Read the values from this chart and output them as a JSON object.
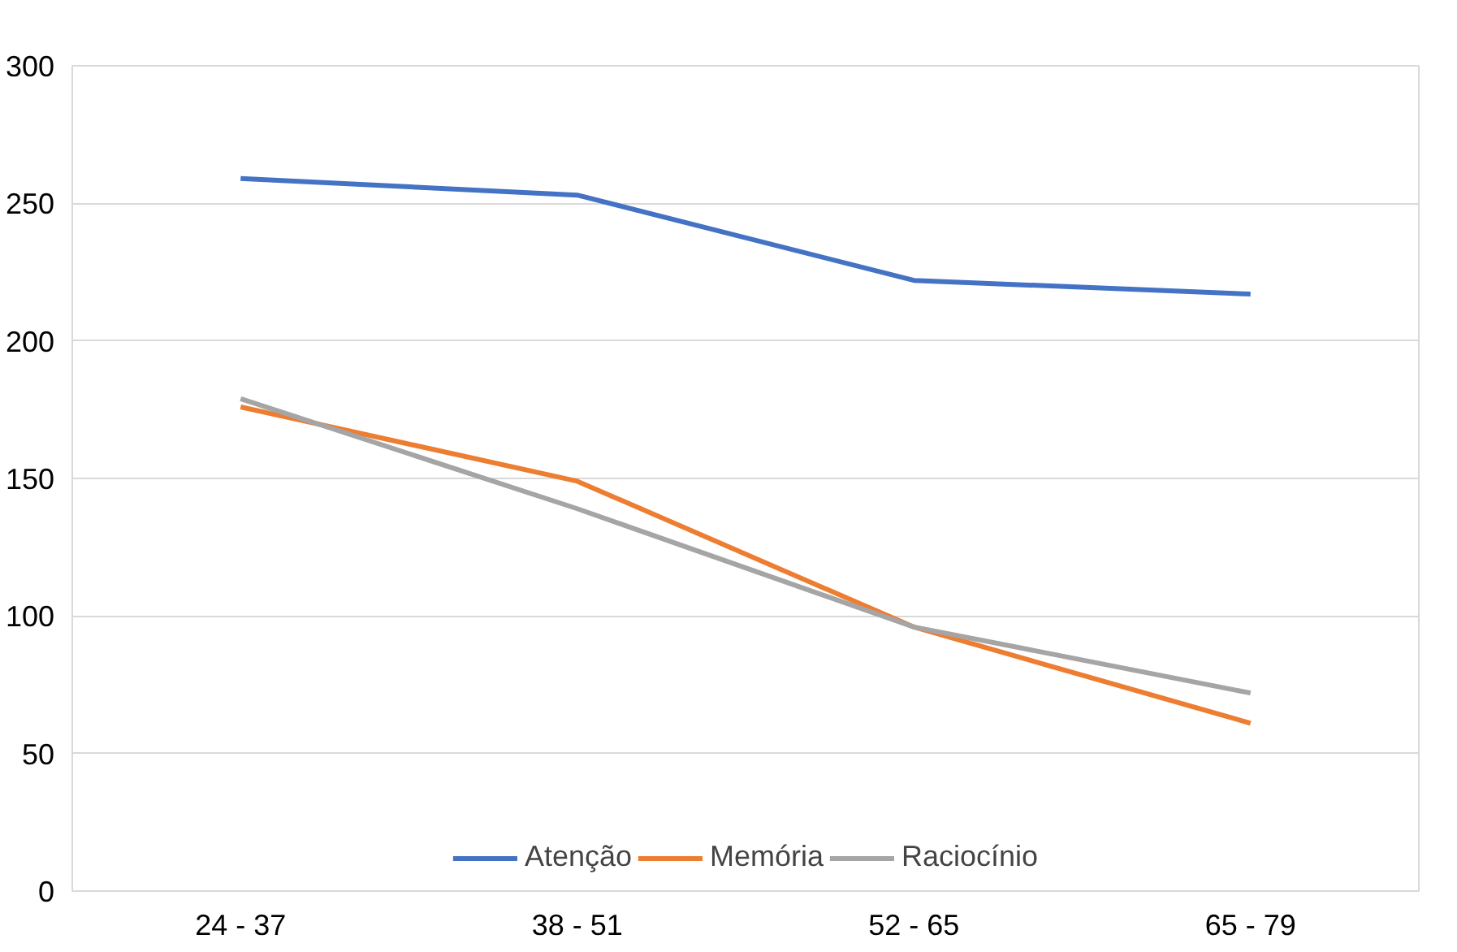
{
  "chart_data": {
    "type": "line",
    "categories": [
      "24 - 37",
      "38 - 51",
      "52 - 65",
      "65 - 79"
    ],
    "series": [
      {
        "name": "Atenção",
        "color": "#4472c4",
        "values": [
          259,
          253,
          222,
          217
        ]
      },
      {
        "name": "Memória",
        "color": "#ed7d31",
        "values": [
          176,
          149,
          96,
          61
        ]
      },
      {
        "name": "Raciocínio",
        "color": "#a5a5a5",
        "values": [
          179,
          139,
          96,
          72
        ]
      }
    ],
    "ylim": [
      0,
      300
    ],
    "yticks": [
      0,
      50,
      100,
      150,
      200,
      250,
      300
    ],
    "grid": "y",
    "legend": "bottom",
    "marker": "none",
    "line_style": "solid"
  }
}
